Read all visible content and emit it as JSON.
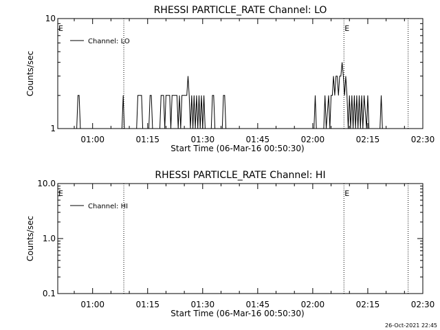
{
  "chart_data": [
    {
      "type": "line",
      "title": "RHESSI PARTICLE_RATE Channel: LO",
      "xlabel": "Start Time (06-Mar-16 00:50:30)",
      "ylabel": "Counts/sec",
      "y_scale": "log",
      "ylim": [
        1,
        10
      ],
      "y_ticks": [
        {
          "value": 1,
          "label": "1"
        },
        {
          "value": 10,
          "label": "10"
        }
      ],
      "x_ticks": [
        "01:00",
        "01:15",
        "01:30",
        "01:45",
        "02:00",
        "02:15",
        "02:30"
      ],
      "xlim": [
        "00:50:30",
        "02:30:00"
      ],
      "legend": {
        "position": "top-left",
        "entries": [
          "Channel: LO"
        ]
      },
      "markers": [
        {
          "time": "00:50:30",
          "label": "E"
        },
        {
          "time": "01:08:30",
          "label": ""
        },
        {
          "time": "02:08:30",
          "label": "E"
        },
        {
          "time": "02:26:00",
          "label": ""
        }
      ],
      "x": [
        "00:55:40",
        "00:56:00",
        "00:56:20",
        "00:56:40",
        "01:08:00",
        "01:08:20",
        "01:08:40",
        "01:12:00",
        "01:12:20",
        "01:13:00",
        "01:13:20",
        "01:13:40",
        "01:15:20",
        "01:15:40",
        "01:16:00",
        "01:16:20",
        "01:18:20",
        "01:18:40",
        "01:19:00",
        "01:19:20",
        "01:19:40",
        "01:20:00",
        "01:21:00",
        "01:21:20",
        "01:21:40",
        "01:22:00",
        "01:23:00",
        "01:23:20",
        "01:23:40",
        "01:24:00",
        "01:24:20",
        "01:25:00",
        "01:25:20",
        "01:25:40",
        "01:26:00",
        "01:26:20",
        "01:26:40",
        "01:27:00",
        "01:27:20",
        "01:27:40",
        "01:28:00",
        "01:28:20",
        "01:28:40",
        "01:29:00",
        "01:29:20",
        "01:29:40",
        "01:30:00",
        "01:30:20",
        "01:30:40",
        "01:32:20",
        "01:32:40",
        "01:33:00",
        "01:33:20",
        "01:35:20",
        "01:35:40",
        "01:36:00",
        "01:36:20",
        "02:00:20",
        "02:00:40",
        "02:01:00",
        "02:03:00",
        "02:03:20",
        "02:03:40",
        "02:04:20",
        "02:04:40",
        "02:05:00",
        "02:05:20",
        "02:05:40",
        "02:06:00",
        "02:06:20",
        "02:06:40",
        "02:07:00",
        "02:07:20",
        "02:07:40",
        "02:08:00",
        "02:08:20",
        "02:08:40",
        "02:09:00",
        "02:09:20",
        "02:09:40",
        "02:10:00",
        "02:10:20",
        "02:10:40",
        "02:11:00",
        "02:11:20",
        "02:11:40",
        "02:12:00",
        "02:12:20",
        "02:12:40",
        "02:13:00",
        "02:13:20",
        "02:13:40",
        "02:14:00",
        "02:14:40",
        "02:15:00",
        "02:15:20",
        "02:18:20",
        "02:18:40",
        "02:19:00"
      ],
      "series": [
        {
          "name": "Channel: LO",
          "values": [
            1,
            2,
            2,
            1,
            1,
            2,
            1,
            1,
            2,
            2,
            2,
            1,
            1,
            2,
            2,
            1,
            1,
            2,
            2,
            2,
            1,
            2,
            2,
            1,
            2,
            2,
            2,
            1,
            2,
            1,
            2,
            2,
            2,
            2,
            3,
            2,
            1,
            2,
            1,
            2,
            1,
            2,
            1,
            2,
            1,
            2,
            1,
            2,
            1,
            1,
            2,
            2,
            1,
            1,
            2,
            2,
            1,
            1,
            2,
            1,
            1,
            2,
            1,
            2,
            1,
            2,
            2,
            3,
            2,
            3,
            3,
            2,
            3,
            3,
            4,
            3,
            2,
            3,
            2,
            1,
            2,
            1,
            2,
            1,
            2,
            1,
            2,
            1,
            2,
            1,
            2,
            1,
            2,
            1,
            2,
            1,
            1,
            2,
            1
          ]
        }
      ]
    },
    {
      "type": "line",
      "title": "RHESSI PARTICLE_RATE Channel: HI",
      "xlabel": "Start Time (06-Mar-16 00:50:30)",
      "ylabel": "Counts/sec",
      "y_scale": "log",
      "ylim": [
        0.1,
        10
      ],
      "y_ticks": [
        {
          "value": 0.1,
          "label": "0.1"
        },
        {
          "value": 1,
          "label": "1.0"
        },
        {
          "value": 10,
          "label": "10.0"
        }
      ],
      "x_ticks": [
        "01:00",
        "01:15",
        "01:30",
        "01:45",
        "02:00",
        "02:15",
        "02:30"
      ],
      "xlim": [
        "00:50:30",
        "02:30:00"
      ],
      "legend": {
        "position": "top-left",
        "entries": [
          "Channel: HI"
        ]
      },
      "markers": [
        {
          "time": "00:50:30",
          "label": "E"
        },
        {
          "time": "01:08:30",
          "label": ""
        },
        {
          "time": "02:08:30",
          "label": "E"
        },
        {
          "time": "02:26:00",
          "label": ""
        }
      ],
      "x": [],
      "series": [
        {
          "name": "Channel: HI",
          "values": []
        }
      ]
    }
  ],
  "footer": {
    "timestamp": "26-Oct-2021 22:45"
  }
}
